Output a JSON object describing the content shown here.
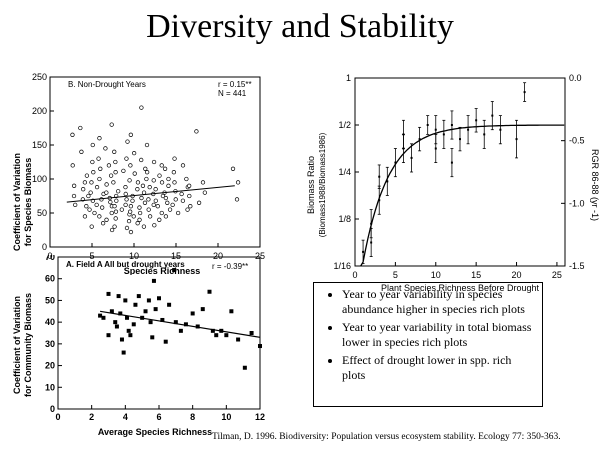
{
  "slide": {
    "title": "Diversity and Stability",
    "bullets": [
      "Year to year variability in species abundance higher in species rich plots",
      "Year to year variability in total biomass lower in species rich plots",
      "Effect of drought lower in spp. rich plots"
    ],
    "citation": "Tilman, D. 1996. Biodiversity: Population versus ecosystem stability. Ecology  77: 350-363."
  },
  "chart_data": [
    {
      "type": "scatter",
      "panel_label": "B. Non-Drought Years",
      "stats_r": "r = 0.15**",
      "stats_n": "N = 441",
      "xlabel": "Species Richness",
      "ylabel_line1": "Coefficient of Variation",
      "ylabel_line2": "for Species Biomass",
      "xlim": [
        0,
        25
      ],
      "ylim": [
        0,
        250
      ],
      "xticks": [
        0,
        5,
        10,
        15,
        20,
        25
      ],
      "yticks": [
        0,
        50,
        100,
        150,
        200,
        250
      ],
      "marker": "open-circle",
      "trend": {
        "x": [
          2,
          22
        ],
        "y": [
          66,
          90
        ]
      },
      "points": [
        [
          3,
          62
        ],
        [
          3,
          75
        ],
        [
          3,
          90
        ],
        [
          3,
          120
        ],
        [
          3,
          165
        ],
        [
          4,
          45
        ],
        [
          4,
          60
        ],
        [
          4,
          70
        ],
        [
          4,
          85
        ],
        [
          4,
          95
        ],
        [
          4,
          105
        ],
        [
          4,
          140
        ],
        [
          4,
          175
        ],
        [
          5,
          30
        ],
        [
          5,
          50
        ],
        [
          5,
          55
        ],
        [
          5,
          68
        ],
        [
          5,
          75
        ],
        [
          5,
          80
        ],
        [
          5,
          95
        ],
        [
          5,
          110
        ],
        [
          5,
          125
        ],
        [
          5,
          150
        ],
        [
          6,
          35
        ],
        [
          6,
          45
        ],
        [
          6,
          58
        ],
        [
          6,
          62
        ],
        [
          6,
          70
        ],
        [
          6,
          78
        ],
        [
          6,
          88
        ],
        [
          6,
          100
        ],
        [
          6,
          115
        ],
        [
          6,
          130
        ],
        [
          6,
          160
        ],
        [
          7,
          25
        ],
        [
          7,
          40
        ],
        [
          7,
          50
        ],
        [
          7,
          60
        ],
        [
          7,
          66
        ],
        [
          7,
          72
        ],
        [
          7,
          80
        ],
        [
          7,
          92
        ],
        [
          7,
          105
        ],
        [
          7,
          120
        ],
        [
          7,
          145
        ],
        [
          7,
          180
        ],
        [
          8,
          30
        ],
        [
          8,
          42
        ],
        [
          8,
          52
        ],
        [
          8,
          60
        ],
        [
          8,
          68
        ],
        [
          8,
          75
        ],
        [
          8,
          82
        ],
        [
          8,
          95
        ],
        [
          8,
          110
        ],
        [
          8,
          125
        ],
        [
          8,
          140
        ],
        [
          9,
          28
        ],
        [
          9,
          38
        ],
        [
          9,
          48
        ],
        [
          9,
          55
        ],
        [
          9,
          62
        ],
        [
          9,
          70
        ],
        [
          9,
          78
        ],
        [
          9,
          88
        ],
        [
          9,
          98
        ],
        [
          9,
          112
        ],
        [
          9,
          130
        ],
        [
          9,
          155
        ],
        [
          10,
          22
        ],
        [
          10,
          35
        ],
        [
          10,
          45
        ],
        [
          10,
          52
        ],
        [
          10,
          60
        ],
        [
          10,
          68
        ],
        [
          10,
          75
        ],
        [
          10,
          85
        ],
        [
          10,
          95
        ],
        [
          10,
          108
        ],
        [
          10,
          120
        ],
        [
          10,
          138
        ],
        [
          10,
          165
        ],
        [
          11,
          30
        ],
        [
          11,
          40
        ],
        [
          11,
          50
        ],
        [
          11,
          58
        ],
        [
          11,
          65
        ],
        [
          11,
          72
        ],
        [
          11,
          80
        ],
        [
          11,
          90
        ],
        [
          11,
          100
        ],
        [
          11,
          115
        ],
        [
          11,
          128
        ],
        [
          11,
          205
        ],
        [
          12,
          32
        ],
        [
          12,
          45
        ],
        [
          12,
          55
        ],
        [
          12,
          62
        ],
        [
          12,
          70
        ],
        [
          12,
          78
        ],
        [
          12,
          88
        ],
        [
          12,
          98
        ],
        [
          12,
          110
        ],
        [
          12,
          125
        ],
        [
          12,
          150
        ],
        [
          13,
          40
        ],
        [
          13,
          50
        ],
        [
          13,
          60
        ],
        [
          13,
          68
        ],
        [
          13,
          75
        ],
        [
          13,
          85
        ],
        [
          13,
          95
        ],
        [
          13,
          105
        ],
        [
          13,
          120
        ],
        [
          14,
          45
        ],
        [
          14,
          55
        ],
        [
          14,
          65
        ],
        [
          14,
          72
        ],
        [
          14,
          80
        ],
        [
          14,
          90
        ],
        [
          14,
          100
        ],
        [
          14,
          115
        ],
        [
          15,
          50
        ],
        [
          15,
          62
        ],
        [
          15,
          70
        ],
        [
          15,
          82
        ],
        [
          15,
          95
        ],
        [
          15,
          110
        ],
        [
          15,
          130
        ],
        [
          16,
          55
        ],
        [
          16,
          68
        ],
        [
          16,
          78
        ],
        [
          16,
          88
        ],
        [
          16,
          100
        ],
        [
          16,
          120
        ],
        [
          17,
          60
        ],
        [
          17,
          75
        ],
        [
          17,
          90
        ],
        [
          17,
          170
        ],
        [
          18,
          65
        ],
        [
          18,
          80
        ],
        [
          18,
          95
        ],
        [
          22,
          70
        ],
        [
          22,
          95
        ],
        [
          22,
          115
        ]
      ]
    },
    {
      "type": "scatter",
      "xlabel": "Plant Species Richness Before Drought",
      "ylabel_line1": "Biomass Ratio",
      "ylabel_line2": "(Biomass1988/Biomass1986)",
      "ylabel_right": "RGR 86-88 (yr -1)",
      "xlim": [
        0,
        26
      ],
      "xticks": [
        0,
        5,
        10,
        15,
        20,
        25
      ],
      "left_ticks": [
        "1/16",
        "1/8",
        "1/4",
        "1/2",
        "1"
      ],
      "left_tick_values": [
        -4,
        -3,
        -2,
        -1,
        0
      ],
      "right_ticks": [
        "-1.5",
        "-1.0",
        "-0.5",
        "0.0"
      ],
      "right_tick_values": [
        -1.5,
        -1.0,
        -0.5,
        0.0
      ],
      "ylim_log2": [
        -4,
        0
      ],
      "marker": "point-with-error-bar",
      "points": [
        {
          "x": 1,
          "y": -3.7,
          "e": 0.25
        },
        {
          "x": 2,
          "y": -3.1,
          "e": 0.3
        },
        {
          "x": 2,
          "y": -3.5,
          "e": 0.3
        },
        {
          "x": 3,
          "y": -2.6,
          "e": 0.3
        },
        {
          "x": 3,
          "y": -2.1,
          "e": 0.25
        },
        {
          "x": 4,
          "y": -2.2,
          "e": 0.3
        },
        {
          "x": 5,
          "y": -1.8,
          "e": 0.3
        },
        {
          "x": 6,
          "y": -1.5,
          "e": 0.3
        },
        {
          "x": 6,
          "y": -1.2,
          "e": 0.3
        },
        {
          "x": 7,
          "y": -1.7,
          "e": 0.3
        },
        {
          "x": 8,
          "y": -1.3,
          "e": 0.25
        },
        {
          "x": 9,
          "y": -1.0,
          "e": 0.2
        },
        {
          "x": 10,
          "y": -1.5,
          "e": 0.3
        },
        {
          "x": 10,
          "y": -1.1,
          "e": 0.3
        },
        {
          "x": 11,
          "y": -1.2,
          "e": 0.3
        },
        {
          "x": 12,
          "y": -1.0,
          "e": 0.3
        },
        {
          "x": 12,
          "y": -1.8,
          "e": 0.3
        },
        {
          "x": 13,
          "y": -1.3,
          "e": 0.25
        },
        {
          "x": 14,
          "y": -1.1,
          "e": 0.3
        },
        {
          "x": 15,
          "y": -0.9,
          "e": 0.25
        },
        {
          "x": 16,
          "y": -1.2,
          "e": 0.3
        },
        {
          "x": 17,
          "y": -0.8,
          "e": 0.3
        },
        {
          "x": 18,
          "y": -1.1,
          "e": 0.3
        },
        {
          "x": 20,
          "y": -1.3,
          "e": 0.4
        },
        {
          "x": 21,
          "y": -0.3,
          "e": 0.2
        }
      ],
      "fit_curve": "saturating"
    },
    {
      "type": "scatter",
      "panel_label": "A. Field A  All but drought years",
      "stats_r": "r = -0.39**",
      "xlabel": "Average Species Richness",
      "ylabel_line1": "Coefficient of Variation",
      "ylabel_line2": "for Community Biomass",
      "xlim": [
        0,
        12
      ],
      "ylim": [
        0,
        70
      ],
      "xticks": [
        0,
        2,
        4,
        6,
        8,
        10,
        12
      ],
      "yticks": [
        0,
        10,
        20,
        30,
        40,
        50,
        60,
        70
      ],
      "marker": "filled-square",
      "trend": {
        "x": [
          2.5,
          12
        ],
        "y": [
          45,
          33
        ]
      },
      "points": [
        [
          2.5,
          43
        ],
        [
          2.7,
          42
        ],
        [
          3.0,
          53
        ],
        [
          3.0,
          34
        ],
        [
          3.2,
          45
        ],
        [
          3.4,
          40
        ],
        [
          3.5,
          38
        ],
        [
          3.6,
          52
        ],
        [
          3.7,
          44
        ],
        [
          3.8,
          32
        ],
        [
          3.9,
          26
        ],
        [
          4.0,
          50
        ],
        [
          4.1,
          42
        ],
        [
          4.2,
          36
        ],
        [
          4.3,
          34
        ],
        [
          4.5,
          39
        ],
        [
          4.6,
          48
        ],
        [
          4.8,
          52
        ],
        [
          5.0,
          42
        ],
        [
          5.2,
          45
        ],
        [
          5.4,
          50
        ],
        [
          5.5,
          40
        ],
        [
          5.6,
          33
        ],
        [
          5.7,
          59
        ],
        [
          5.8,
          46
        ],
        [
          6.0,
          51
        ],
        [
          6.2,
          41
        ],
        [
          6.4,
          31
        ],
        [
          6.6,
          48
        ],
        [
          6.9,
          64
        ],
        [
          7.0,
          40
        ],
        [
          7.3,
          36
        ],
        [
          7.6,
          39
        ],
        [
          8.0,
          44
        ],
        [
          8.3,
          38
        ],
        [
          8.6,
          46
        ],
        [
          9.0,
          54
        ],
        [
          9.2,
          36
        ],
        [
          9.4,
          34
        ],
        [
          9.7,
          36
        ],
        [
          10.0,
          34
        ],
        [
          10.3,
          45
        ],
        [
          10.7,
          32
        ],
        [
          11.1,
          19
        ],
        [
          11.5,
          35
        ],
        [
          12.0,
          29
        ]
      ]
    }
  ]
}
